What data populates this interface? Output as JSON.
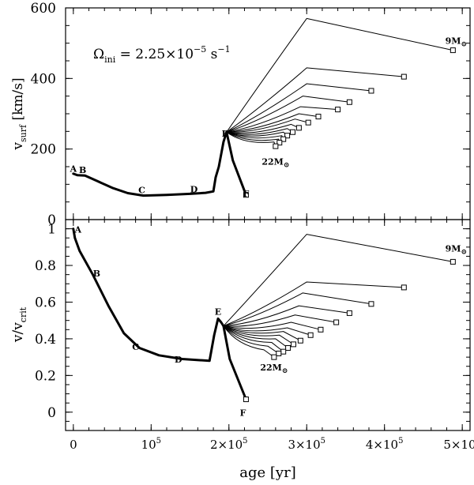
{
  "chart_data": [
    {
      "panel": "top",
      "type": "line",
      "ylabel": "v",
      "ylabel_sub": "surf",
      "ylabel_units": "[km/s]",
      "ylim": [
        0,
        600
      ],
      "yticks": [
        0,
        200,
        400,
        600
      ],
      "ytick_labels": [
        "0",
        "200",
        "400",
        "600"
      ],
      "annotation": {
        "symbol": "Ω",
        "sub": "ini",
        "eq": " = 2.25×10",
        "exp": "−5",
        "unit": " s",
        "unit_exp": "−1"
      },
      "labels": {
        "A": [
          0,
          135
        ],
        "B": [
          12000,
          132
        ],
        "C": [
          88000,
          75
        ],
        "D": [
          155000,
          77
        ],
        "E": [
          195000,
          235
        ],
        "F": [
          222000,
          65
        ],
        "9M": [
          488000,
          485
        ],
        "22M": [
          260000,
          183
        ]
      },
      "mass_label_top": "9M",
      "mass_label_bottom": "22M",
      "mass_symbol": "⊙",
      "main_track": [
        [
          0,
          130
        ],
        [
          5000,
          126
        ],
        [
          15000,
          125
        ],
        [
          30000,
          110
        ],
        [
          50000,
          90
        ],
        [
          70000,
          75
        ],
        [
          90000,
          68
        ],
        [
          120000,
          70
        ],
        [
          150000,
          73
        ],
        [
          170000,
          76
        ],
        [
          180000,
          80
        ],
        [
          183000,
          120
        ],
        [
          187000,
          150
        ],
        [
          193000,
          220
        ],
        [
          197000,
          248
        ]
      ],
      "series": [
        {
          "name": "9M",
          "tip": [
            300000,
            570
          ],
          "end": [
            488000,
            480
          ]
        },
        {
          "name": "track-2",
          "tip": [
            300000,
            430
          ],
          "end": [
            425000,
            405
          ]
        },
        {
          "name": "track-3",
          "tip": [
            300000,
            385
          ],
          "end": [
            383000,
            365
          ]
        },
        {
          "name": "track-4",
          "tip": [
            295000,
            350
          ],
          "end": [
            355000,
            333
          ]
        },
        {
          "name": "track-5",
          "tip": [
            292000,
            320
          ],
          "end": [
            340000,
            312
          ]
        },
        {
          "name": "track-6",
          "tip": [
            290000,
            300
          ],
          "end": [
            315000,
            292
          ]
        },
        {
          "name": "track-7",
          "tip": [
            285000,
            285
          ],
          "end": [
            302000,
            275
          ]
        },
        {
          "name": "track-8",
          "tip": [
            280000,
            270
          ],
          "end": [
            290000,
            260
          ]
        },
        {
          "name": "track-9",
          "tip": [
            275000,
            258
          ],
          "end": [
            282000,
            248
          ]
        },
        {
          "name": "track-10",
          "tip": [
            270000,
            248
          ],
          "end": [
            275000,
            238
          ]
        },
        {
          "name": "track-11",
          "tip": [
            268000,
            238
          ],
          "end": [
            270000,
            228
          ]
        },
        {
          "name": "track-12",
          "tip": [
            264000,
            228
          ],
          "end": [
            265000,
            218
          ]
        },
        {
          "name": "22M",
          "tip": [
            258000,
            220
          ],
          "end": [
            260000,
            208
          ]
        }
      ],
      "f_branch_end": [
        222000,
        70
      ]
    },
    {
      "panel": "bottom",
      "type": "line",
      "ylabel": "v/v",
      "ylabel_sub": "crit",
      "ylim": [
        -0.1,
        1.05
      ],
      "yticks": [
        0,
        0.2,
        0.4,
        0.6,
        0.8,
        1
      ],
      "ytick_labels": [
        "0",
        "0.2",
        "0.4",
        "0.6",
        "0.8",
        "1"
      ],
      "xlabel": "age [yr]",
      "xlim": [
        -10000,
        510000
      ],
      "xticks": [
        0,
        100000,
        200000,
        300000,
        400000,
        500000
      ],
      "xtick_labels": [
        {
          "base": "0",
          "exp": ""
        },
        {
          "base": "10",
          "exp": "5"
        },
        {
          "base": "2×10",
          "exp": "5"
        },
        {
          "base": "3×10",
          "exp": "5"
        },
        {
          "base": "4×10",
          "exp": "5"
        },
        {
          "base": "5×10",
          "exp": "5"
        }
      ],
      "labels": {
        "A": [
          6000,
          0.98
        ],
        "B": [
          30000,
          0.74
        ],
        "C": [
          80000,
          0.34
        ],
        "D": [
          135000,
          0.27
        ],
        "E": [
          186000,
          0.53
        ],
        "F": [
          218000,
          -0.02
        ],
        "9M": [
          488000,
          0.85
        ],
        "22M": [
          258000,
          0.28
        ]
      },
      "mass_label_top": "9M",
      "mass_label_bottom": "22M",
      "mass_symbol": "⊙",
      "main_track": [
        [
          0,
          1.0
        ],
        [
          2000,
          0.95
        ],
        [
          8000,
          0.88
        ],
        [
          25000,
          0.75
        ],
        [
          45000,
          0.58
        ],
        [
          65000,
          0.43
        ],
        [
          85000,
          0.35
        ],
        [
          110000,
          0.31
        ],
        [
          140000,
          0.29
        ],
        [
          175000,
          0.28
        ],
        [
          181000,
          0.42
        ],
        [
          186000,
          0.51
        ],
        [
          190000,
          0.49
        ],
        [
          193000,
          0.47
        ]
      ],
      "series": [
        {
          "name": "9M",
          "tip": [
            300000,
            0.97
          ],
          "end": [
            488000,
            0.82
          ]
        },
        {
          "name": "track-2",
          "tip": [
            300000,
            0.71
          ],
          "end": [
            425000,
            0.68
          ]
        },
        {
          "name": "track-3",
          "tip": [
            295000,
            0.65
          ],
          "end": [
            383000,
            0.59
          ]
        },
        {
          "name": "track-4",
          "tip": [
            290000,
            0.58
          ],
          "end": [
            355000,
            0.54
          ]
        },
        {
          "name": "track-5",
          "tip": [
            285000,
            0.53
          ],
          "end": [
            338000,
            0.49
          ]
        },
        {
          "name": "track-6",
          "tip": [
            280000,
            0.49
          ],
          "end": [
            318000,
            0.45
          ]
        },
        {
          "name": "track-7",
          "tip": [
            275000,
            0.46
          ],
          "end": [
            305000,
            0.42
          ]
        },
        {
          "name": "track-8",
          "tip": [
            270000,
            0.44
          ],
          "end": [
            292000,
            0.39
          ]
        },
        {
          "name": "track-9",
          "tip": [
            265000,
            0.42
          ],
          "end": [
            283000,
            0.37
          ]
        },
        {
          "name": "track-10",
          "tip": [
            260000,
            0.4
          ],
          "end": [
            276000,
            0.35
          ]
        },
        {
          "name": "track-11",
          "tip": [
            255000,
            0.38
          ],
          "end": [
            270000,
            0.33
          ]
        },
        {
          "name": "track-12",
          "tip": [
            250000,
            0.36
          ],
          "end": [
            264000,
            0.32
          ]
        },
        {
          "name": "22M",
          "tip": [
            245000,
            0.34
          ],
          "end": [
            258000,
            0.3
          ]
        }
      ],
      "f_branch_end": [
        222000,
        0.07
      ]
    }
  ]
}
